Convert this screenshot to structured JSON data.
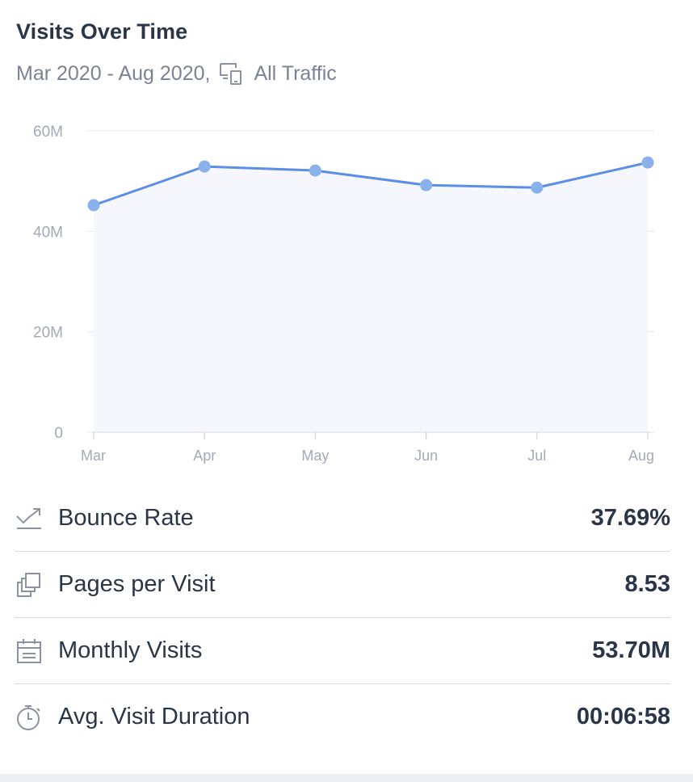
{
  "header": {
    "title": "Visits Over Time",
    "date_range": "Mar 2020 - Aug 2020,",
    "traffic_icon": "devices-icon",
    "traffic_label": "All Traffic"
  },
  "chart_data": {
    "type": "line",
    "title": "Visits Over Time",
    "categories": [
      "Mar",
      "Apr",
      "May",
      "Jun",
      "Jul",
      "Aug"
    ],
    "series": [
      {
        "name": "Visits",
        "values": [
          45.2,
          52.9,
          52.1,
          49.2,
          48.7,
          53.7
        ]
      }
    ],
    "ylim": [
      0,
      60
    ],
    "yticks": [
      0,
      20,
      40,
      60
    ],
    "ytick_labels": [
      "0",
      "20M",
      "40M",
      "60M"
    ],
    "xlabel": "",
    "ylabel": "",
    "grid": true,
    "line_color": "#5b8ee6",
    "point_color": "#8bb1ec",
    "area_color": "#f5f7fd"
  },
  "metrics": [
    {
      "icon": "bounce-rate-icon",
      "label": "Bounce Rate",
      "value": "37.69%"
    },
    {
      "icon": "pages-per-visit-icon",
      "label": "Pages per Visit",
      "value": "8.53"
    },
    {
      "icon": "calendar-icon",
      "label": "Monthly Visits",
      "value": "53.70M"
    },
    {
      "icon": "stopwatch-icon",
      "label": "Avg. Visit Duration",
      "value": "00:06:58"
    }
  ]
}
